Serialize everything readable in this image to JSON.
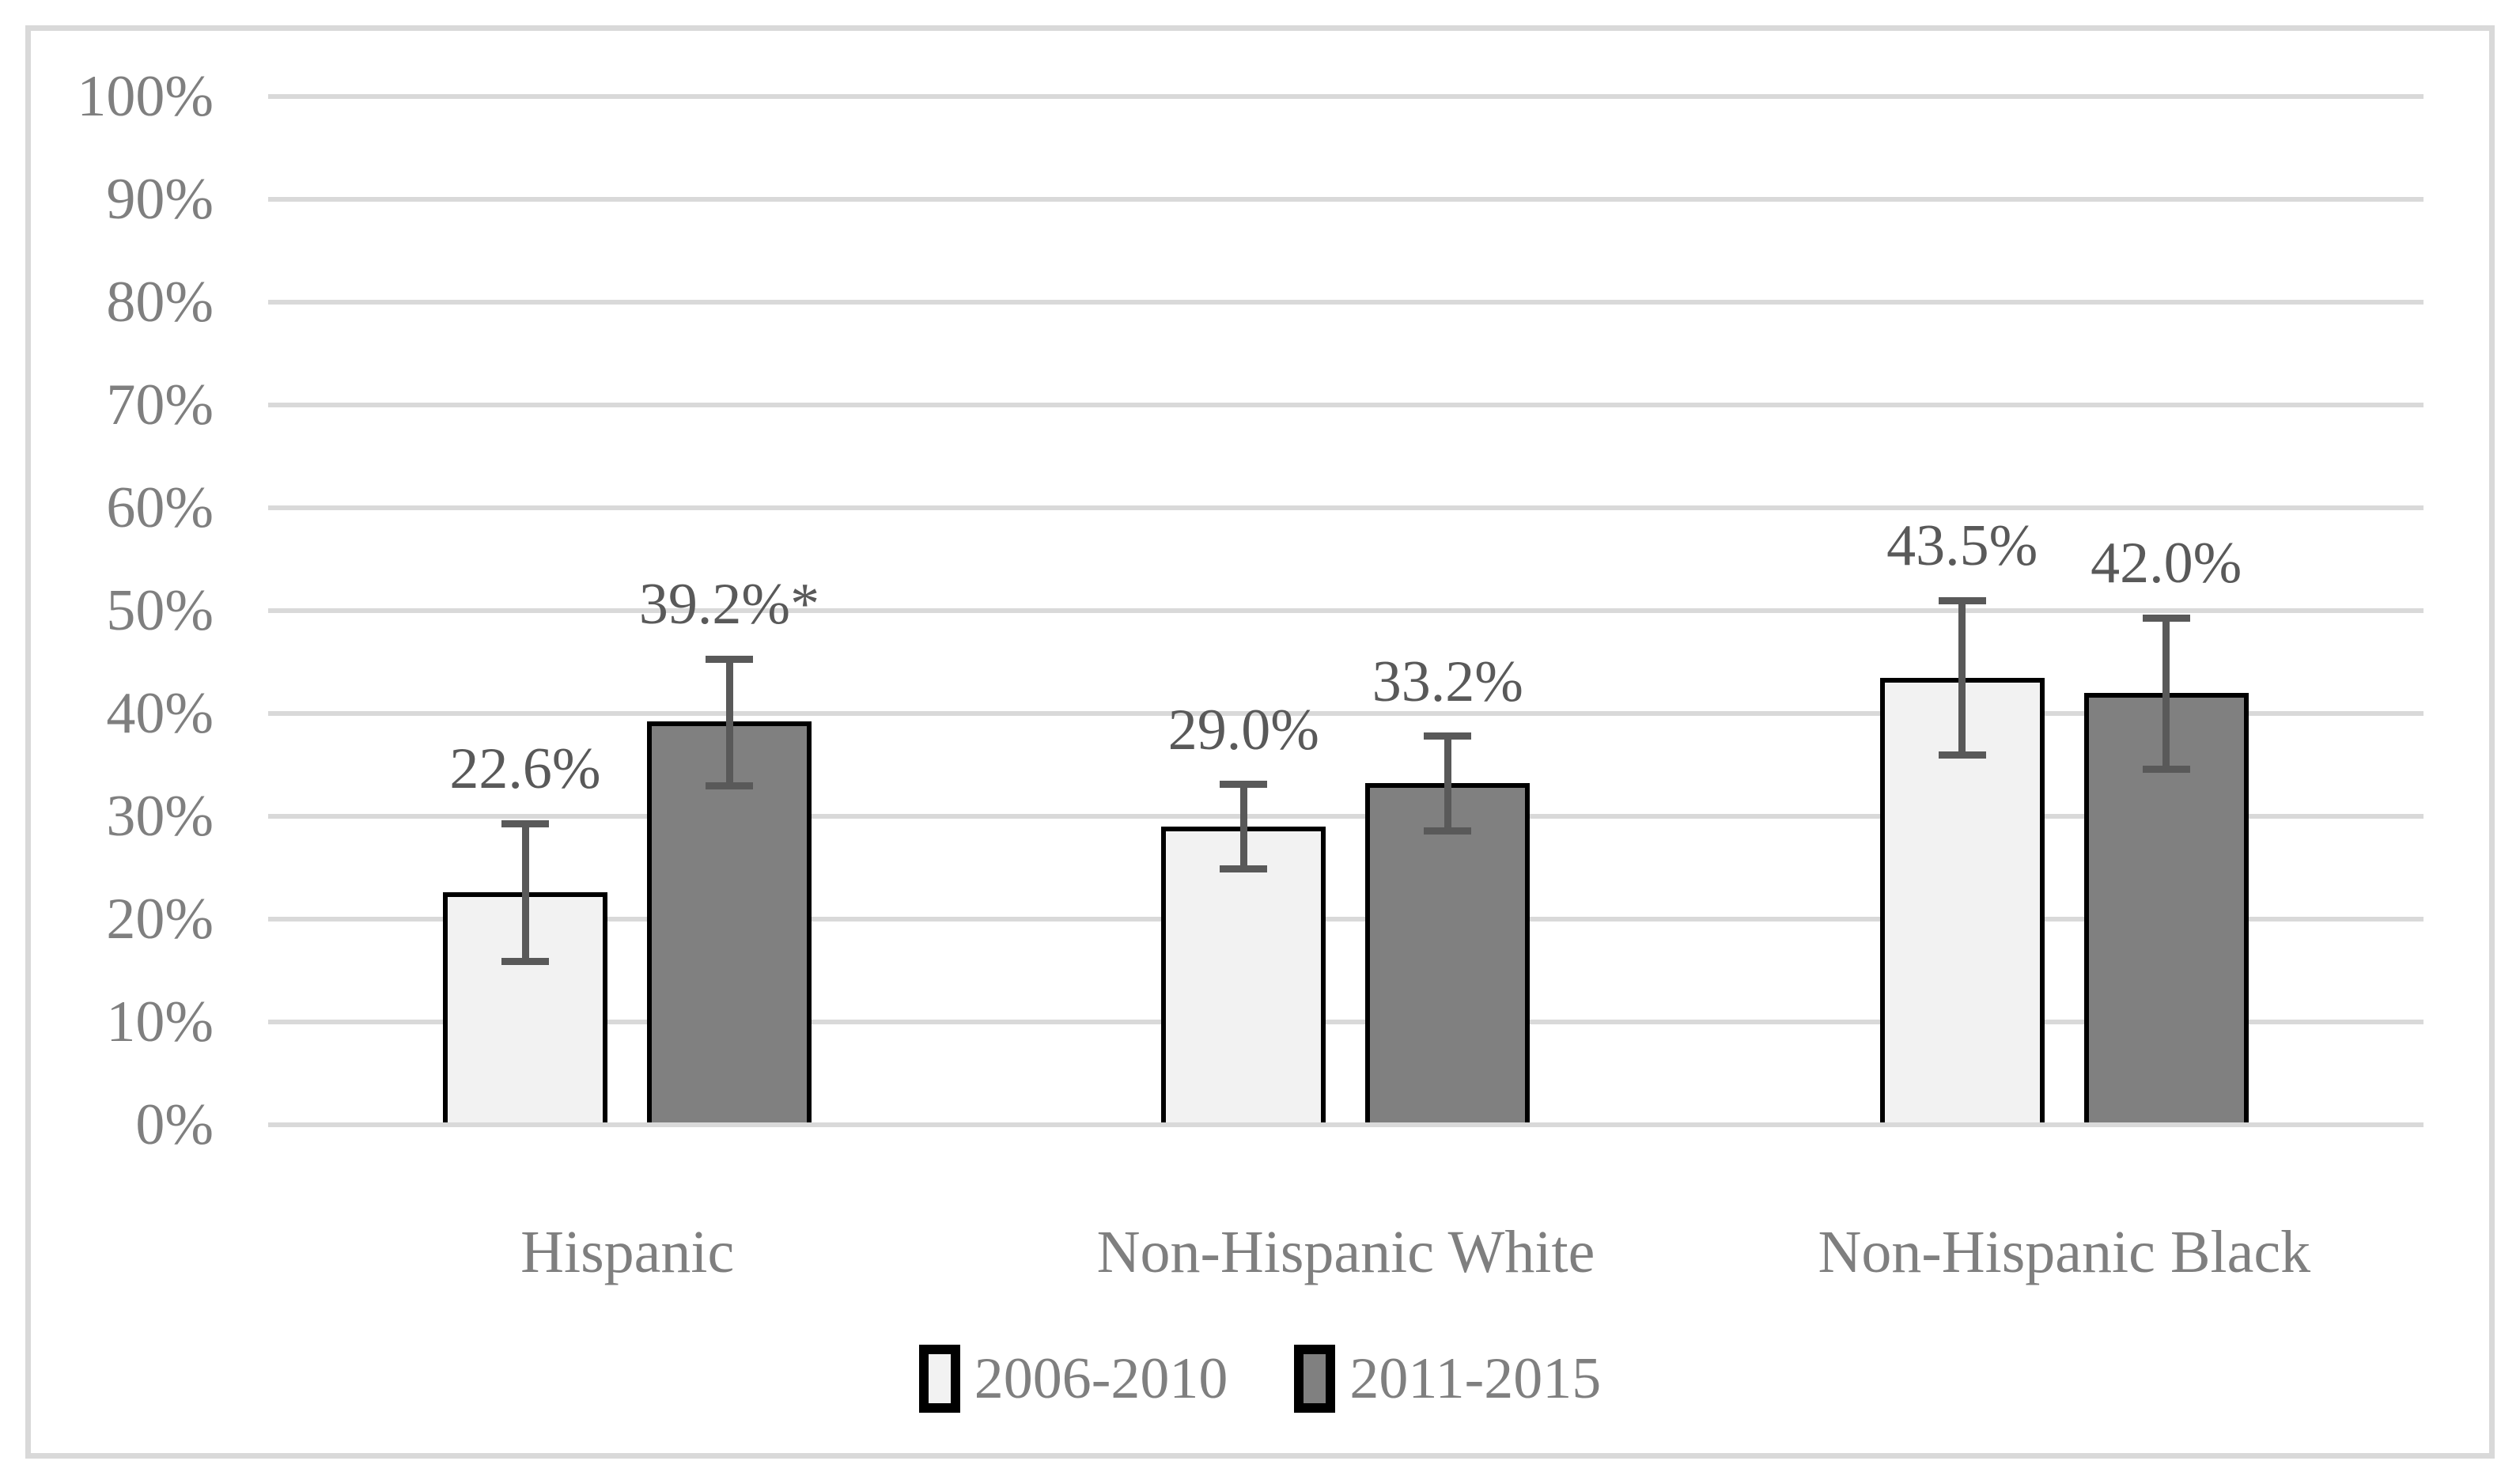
{
  "figure": {
    "background": "#ffffff",
    "border_color": "#d9d9d9"
  },
  "chart_data": {
    "type": "bar",
    "title": "",
    "xlabel": "",
    "ylabel": "",
    "categories": [
      "Hispanic",
      "Non-Hispanic White",
      "Non-Hispanic Black"
    ],
    "series": [
      {
        "name": "2006-2010",
        "fill": "#f2f2f2",
        "values": [
          22.6,
          29.0,
          43.5
        ],
        "data_labels": [
          "22.6%",
          "29.0%",
          "43.5%"
        ],
        "error_low": [
          15.9,
          24.9,
          36.0
        ],
        "error_high": [
          29.3,
          33.1,
          51.0
        ]
      },
      {
        "name": "2011-2015",
        "fill": "#808080",
        "values": [
          39.2,
          33.2,
          42.0
        ],
        "data_labels": [
          "39.2%*",
          "33.2%",
          "42.0%"
        ],
        "error_low": [
          33.0,
          28.6,
          34.6
        ],
        "error_high": [
          45.3,
          37.8,
          49.3
        ]
      }
    ],
    "y_ticks": [
      "0%",
      "10%",
      "20%",
      "30%",
      "40%",
      "50%",
      "60%",
      "70%",
      "80%",
      "90%",
      "100%"
    ],
    "ylim": [
      0,
      100
    ],
    "grid": true,
    "legend_position": "bottom"
  },
  "colors": {
    "gridline": "#d9d9d9",
    "bar_border": "#000000",
    "error_bar": "#595959",
    "axis_text": "#7f7f7f",
    "data_label_text": "#595959"
  }
}
